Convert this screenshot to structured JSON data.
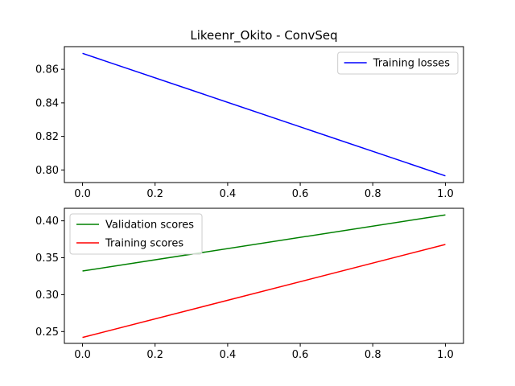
{
  "title": "Likeenr_Okito - ConvSeq",
  "chart_data": [
    {
      "type": "line",
      "title": "Likeenr_Okito - ConvSeq",
      "xlim": [
        -0.05,
        1.05
      ],
      "ylim": [
        0.7925,
        0.8735
      ],
      "xticks": [
        "0.0",
        "0.2",
        "0.4",
        "0.6",
        "0.8",
        "1.0"
      ],
      "yticks": [
        "0.80",
        "0.82",
        "0.84",
        "0.86"
      ],
      "grid": false,
      "legend_position": "upper right",
      "series": [
        {
          "name": "Training losses",
          "color": "#0000ff",
          "x": [
            0,
            1
          ],
          "y": [
            0.8695,
            0.7965
          ]
        }
      ]
    },
    {
      "type": "line",
      "xlim": [
        -0.05,
        1.05
      ],
      "ylim": [
        0.234,
        0.417
      ],
      "xticks": [
        "0.0",
        "0.2",
        "0.4",
        "0.6",
        "0.8",
        "1.0"
      ],
      "yticks": [
        "0.25",
        "0.30",
        "0.35",
        "0.40"
      ],
      "grid": false,
      "legend_position": "upper left",
      "series": [
        {
          "name": "Validation scores",
          "color": "#008000",
          "x": [
            0,
            1
          ],
          "y": [
            0.332,
            0.408
          ]
        },
        {
          "name": "Training scores",
          "color": "#ff0000",
          "x": [
            0,
            1
          ],
          "y": [
            0.242,
            0.368
          ]
        }
      ]
    }
  ]
}
